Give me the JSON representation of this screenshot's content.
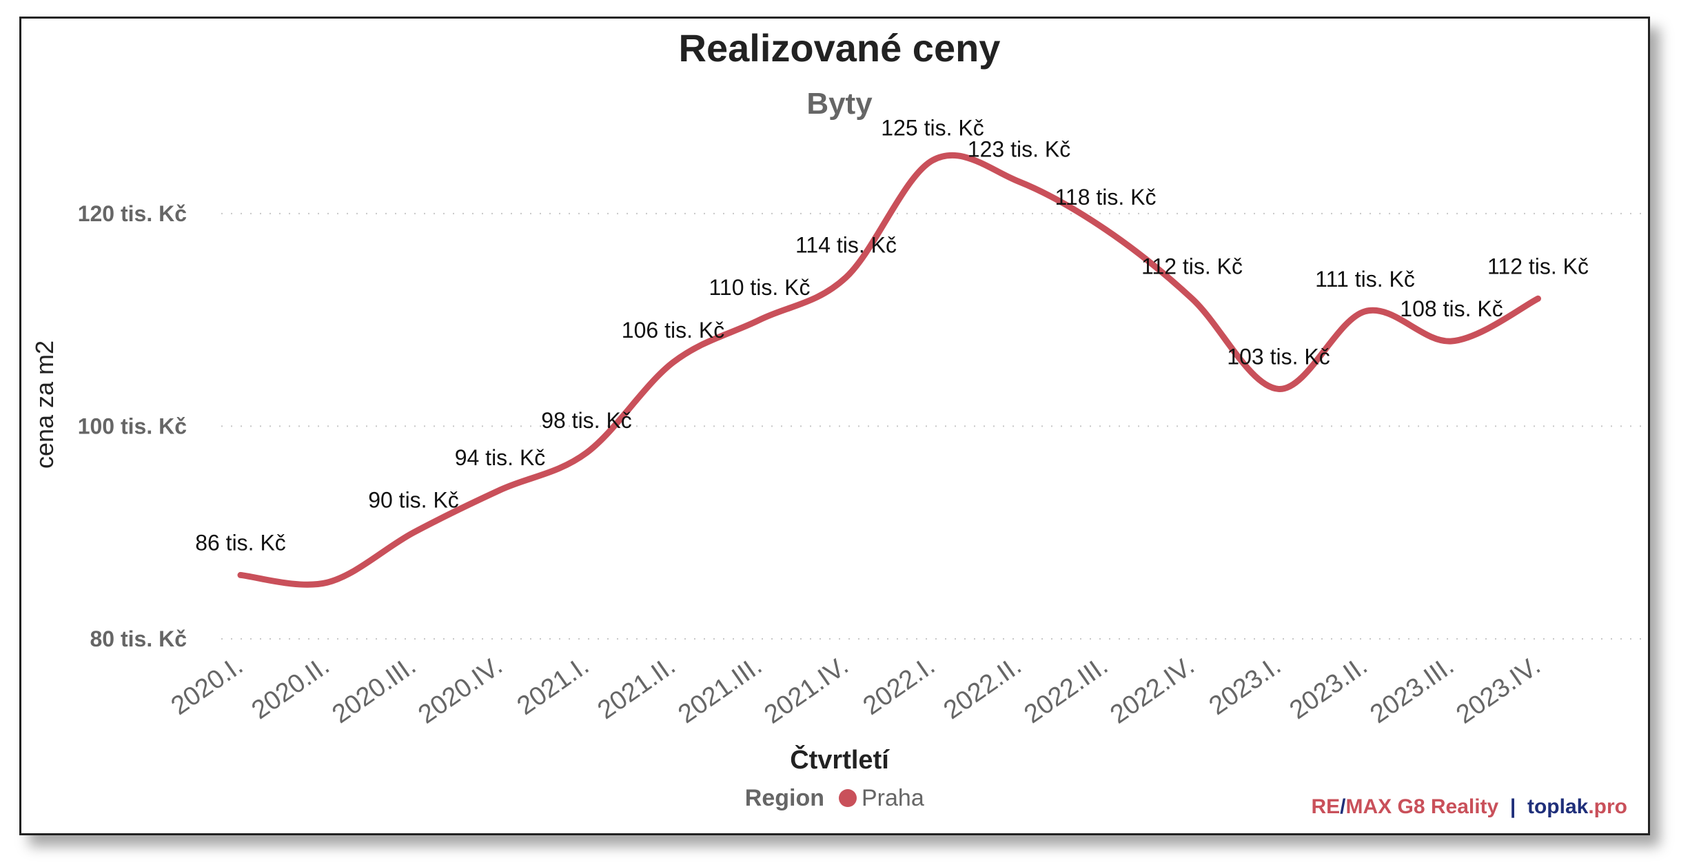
{
  "chart_data": {
    "type": "line",
    "title": "Realizované ceny",
    "subtitle": "Byty",
    "xlabel": "Čtvrtletí",
    "ylabel": "cena za m2",
    "categories": [
      "2020.I.",
      "2020.II.",
      "2020.III.",
      "2020.IV.",
      "2021.I.",
      "2021.II.",
      "2021.III.",
      "2021.IV.",
      "2022.I.",
      "2022.II.",
      "2022.III.",
      "2022.IV.",
      "2023.I.",
      "2023.II.",
      "2023.III.",
      "2023.IV."
    ],
    "series": [
      {
        "name": "Praha",
        "values": [
          86,
          85.3,
          90,
          94,
          97.5,
          106,
          110,
          114,
          125,
          123,
          118.5,
          112,
          103.5,
          110.8,
          108,
          112
        ],
        "labels": [
          "86 tis. Kč",
          "",
          "90 tis. Kč",
          "94 tis. Kč",
          "98 tis. Kč",
          "106 tis. Kč",
          "110 tis. Kč",
          "114 tis. Kč",
          "125 tis. Kč",
          "123 tis. Kč",
          "118 tis. Kč",
          "112 tis. Kč",
          "103 tis. Kč",
          "111 tis. Kč",
          "108 tis. Kč",
          "112 tis. Kč"
        ]
      }
    ],
    "yticks": [
      {
        "value": 80,
        "label": "80 tis. Kč"
      },
      {
        "value": 100,
        "label": "100 tis. Kč"
      },
      {
        "value": 120,
        "label": "120 tis. Kč"
      }
    ],
    "ylim": [
      80,
      125
    ],
    "grid": "horizontal dotted",
    "legend": {
      "title": "Region",
      "placement": "bottom"
    },
    "colors": {
      "series": "#c9505a",
      "grid": "#c8c8c8",
      "title": "#222222",
      "subtitle": "#666666",
      "axis_text": "#666666"
    }
  },
  "branding": {
    "brand_a": "RE",
    "sep_a": "/",
    "brand_b": "MAX G8 Reality",
    "sep_b": "  |  ",
    "site_a": "toplak",
    "site_b": ".pro",
    "colors": {
      "red": "#c9505a",
      "blue": "#1f2f7a"
    }
  }
}
